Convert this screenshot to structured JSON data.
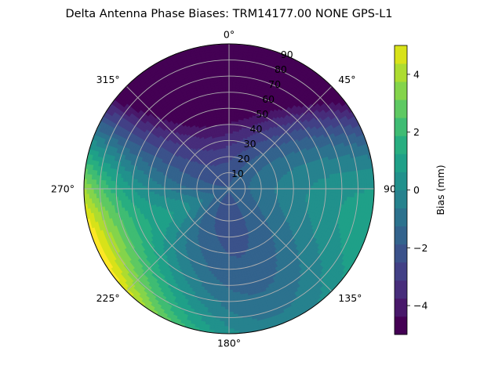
{
  "chart_data": {
    "type": "polar-contour",
    "title": "Delta Antenna Phase Biases: TRM14177.00     NONE GPS-L1",
    "angular_ticks": [
      "0°",
      "45°",
      "90",
      "135°",
      "180°",
      "225°",
      "270°",
      "315°"
    ],
    "radial_ticks": [
      "10",
      "20",
      "30",
      "40",
      "50",
      "60",
      "70",
      "80",
      "90"
    ],
    "radial_range": [
      0,
      90
    ],
    "grid": true,
    "colorbar": {
      "label": "Bias (mm)",
      "range": [
        -5,
        5
      ],
      "ticks": [
        "−4",
        "−2",
        "0",
        "2",
        "4"
      ],
      "tick_values": [
        -4,
        -2,
        0,
        2,
        4
      ],
      "levels": [
        -5,
        -4.375,
        -3.75,
        -3.125,
        -2.5,
        -1.875,
        -1.25,
        -0.625,
        0,
        0.625,
        1.25,
        1.875,
        2.5,
        3.125,
        3.75,
        4.375,
        5
      ],
      "colors": [
        "#440154",
        "#48186a",
        "#472d7b",
        "#424086",
        "#3b528b",
        "#33638d",
        "#2c728e",
        "#26828e",
        "#21918c",
        "#1fa088",
        "#28ae80",
        "#3fbc73",
        "#5ec962",
        "#84d44b",
        "#addc30",
        "#d8e219",
        "#fde725"
      ]
    }
  }
}
